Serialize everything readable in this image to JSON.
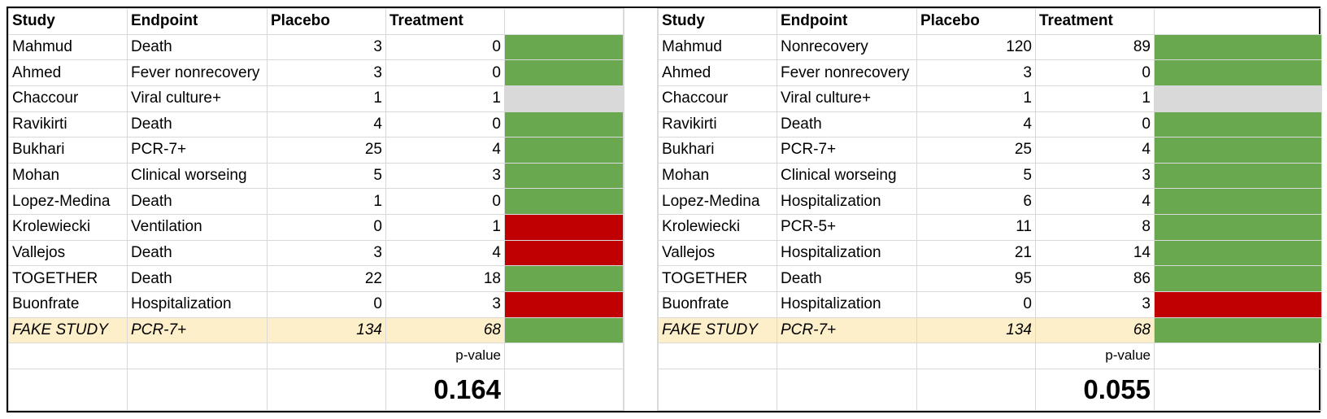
{
  "colors": {
    "better": "#6aa84f",
    "worse": "#c00000",
    "neutral": "#d9d9d9",
    "highlight": "#fdefc9"
  },
  "headers": {
    "study": "Study",
    "endpoint": "Endpoint",
    "placebo": "Placebo",
    "treatment": "Treatment"
  },
  "left": {
    "rows": [
      {
        "study": "Mahmud",
        "endpoint": "Death",
        "placebo": "3",
        "treatment": "0",
        "result": "better"
      },
      {
        "study": "Ahmed",
        "endpoint": "Fever nonrecovery",
        "placebo": "3",
        "treatment": "0",
        "result": "better"
      },
      {
        "study": "Chaccour",
        "endpoint": "Viral culture+",
        "placebo": "1",
        "treatment": "1",
        "result": "neutral"
      },
      {
        "study": "Ravikirti",
        "endpoint": "Death",
        "placebo": "4",
        "treatment": "0",
        "result": "better"
      },
      {
        "study": "Bukhari",
        "endpoint": "PCR-7+",
        "placebo": "25",
        "treatment": "4",
        "result": "better"
      },
      {
        "study": "Mohan",
        "endpoint": "Clinical worseing",
        "placebo": "5",
        "treatment": "3",
        "result": "better"
      },
      {
        "study": "Lopez-Medina",
        "endpoint": "Death",
        "placebo": "1",
        "treatment": "0",
        "result": "better"
      },
      {
        "study": "Krolewiecki",
        "endpoint": "Ventilation",
        "placebo": "0",
        "treatment": "1",
        "result": "worse"
      },
      {
        "study": "Vallejos",
        "endpoint": "Death",
        "placebo": "3",
        "treatment": "4",
        "result": "worse"
      },
      {
        "study": "TOGETHER",
        "endpoint": "Death",
        "placebo": "22",
        "treatment": "18",
        "result": "better"
      },
      {
        "study": "Buonfrate",
        "endpoint": "Hospitalization",
        "placebo": "0",
        "treatment": "3",
        "result": "worse"
      },
      {
        "study": "FAKE STUDY",
        "endpoint": "PCR-7+",
        "placebo": "134",
        "treatment": "68",
        "result": "better",
        "fake": true
      }
    ],
    "p_label": "p-value",
    "p_value": "0.164"
  },
  "right": {
    "rows": [
      {
        "study": "Mahmud",
        "endpoint": "Nonrecovery",
        "placebo": "120",
        "treatment": "89",
        "result": "better"
      },
      {
        "study": "Ahmed",
        "endpoint": "Fever nonrecovery",
        "placebo": "3",
        "treatment": "0",
        "result": "better"
      },
      {
        "study": "Chaccour",
        "endpoint": "Viral culture+",
        "placebo": "1",
        "treatment": "1",
        "result": "neutral"
      },
      {
        "study": "Ravikirti",
        "endpoint": "Death",
        "placebo": "4",
        "treatment": "0",
        "result": "better"
      },
      {
        "study": "Bukhari",
        "endpoint": "PCR-7+",
        "placebo": "25",
        "treatment": "4",
        "result": "better"
      },
      {
        "study": "Mohan",
        "endpoint": "Clinical worseing",
        "placebo": "5",
        "treatment": "3",
        "result": "better"
      },
      {
        "study": "Lopez-Medina",
        "endpoint": "Hospitalization",
        "placebo": "6",
        "treatment": "4",
        "result": "better"
      },
      {
        "study": "Krolewiecki",
        "endpoint": "PCR-5+",
        "placebo": "11",
        "treatment": "8",
        "result": "better"
      },
      {
        "study": "Vallejos",
        "endpoint": "Hospitalization",
        "placebo": "21",
        "treatment": "14",
        "result": "better"
      },
      {
        "study": "TOGETHER",
        "endpoint": "Death",
        "placebo": "95",
        "treatment": "86",
        "result": "better"
      },
      {
        "study": "Buonfrate",
        "endpoint": "Hospitalization",
        "placebo": "0",
        "treatment": "3",
        "result": "worse"
      },
      {
        "study": "FAKE STUDY",
        "endpoint": "PCR-7+",
        "placebo": "134",
        "treatment": "68",
        "result": "better",
        "fake": true
      }
    ],
    "p_label": "p-value",
    "p_value": "0.055"
  }
}
